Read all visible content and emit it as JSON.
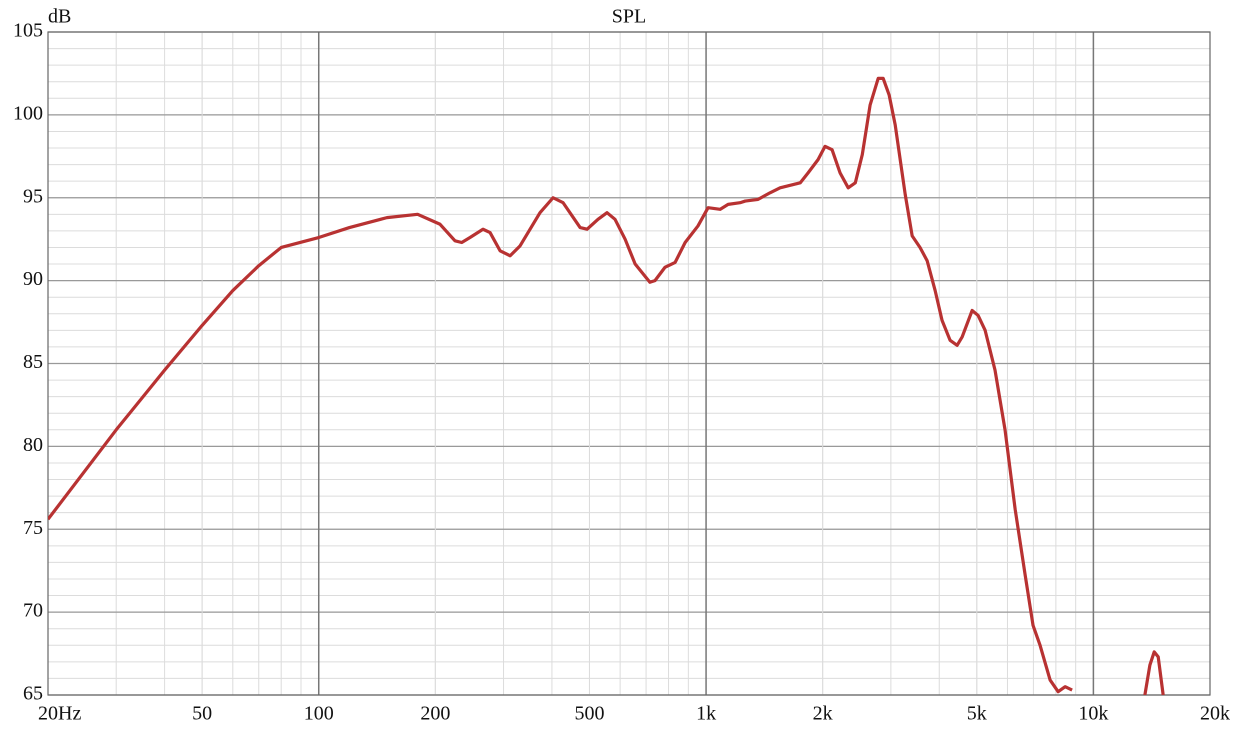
{
  "chart_data": {
    "type": "line",
    "title": "SPL",
    "y_label": "dB",
    "log_x": true,
    "grid": true,
    "minor_grid": true,
    "xlim": [
      20,
      20000
    ],
    "ylim": [
      65,
      105
    ],
    "xticks": [
      {
        "value": 20,
        "label": "20Hz"
      },
      50,
      100,
      200,
      500,
      {
        "value": 1000,
        "label": "1k"
      },
      {
        "value": 2000,
        "label": "2k"
      },
      {
        "value": 5000,
        "label": "5k"
      },
      {
        "value": 10000,
        "label": "10k"
      },
      {
        "value": 20000,
        "label": "20k"
      }
    ],
    "yticks": [
      65,
      70,
      75,
      80,
      85,
      90,
      95,
      100,
      105
    ],
    "series": [
      {
        "color": "#b83232",
        "x": [
          20,
          30,
          40,
          50,
          60,
          70,
          80,
          100,
          120,
          150,
          180,
          205.7,
          224.8,
          234,
          245.8,
          265.5,
          276.9,
          293.9,
          312,
          331,
          372.6,
          402.7,
          427.5,
          473,
          493,
          526,
          555,
          582,
          618,
          656,
          716,
          738,
          783,
          832,
          883,
          953,
          1012,
          1087,
          1140,
          1224,
          1262,
          1362,
          1463,
          1553,
          1750,
          1834,
          1946,
          2028,
          2115,
          2218,
          2328,
          2428,
          2531,
          2652,
          2782,
          2866,
          2969,
          3078,
          3267,
          3405,
          3568,
          3722,
          3903,
          4067,
          4266,
          4448,
          4583,
          4864,
          5039,
          5254,
          5572,
          5914,
          6281,
          6669,
          6985,
          7283,
          7732,
          8109,
          8454,
          8811,
          11000,
          13580,
          13990,
          14355,
          14700,
          15140
        ],
        "values": [
          75.6,
          81.0,
          84.6,
          87.3,
          89.4,
          90.9,
          92.0,
          92.6,
          93.2,
          93.8,
          94.0,
          93.4,
          92.4,
          92.3,
          92.6,
          93.1,
          92.9,
          91.8,
          91.5,
          92.1,
          94.1,
          95.0,
          94.7,
          93.2,
          93.1,
          93.7,
          94.1,
          93.7,
          92.5,
          91.0,
          89.9,
          90.0,
          90.8,
          91.1,
          92.3,
          93.3,
          94.4,
          94.3,
          94.6,
          94.7,
          94.8,
          94.9,
          95.3,
          95.6,
          95.9,
          96.5,
          97.3,
          98.1,
          97.9,
          96.5,
          95.6,
          95.9,
          97.6,
          100.6,
          102.2,
          102.2,
          101.2,
          99.4,
          95.2,
          92.7,
          92.0,
          91.2,
          89.4,
          87.6,
          86.4,
          86.1,
          86.6,
          88.2,
          87.9,
          87.0,
          84.6,
          81.0,
          76.2,
          72.2,
          69.2,
          68.0,
          65.9,
          65.2,
          65.5,
          65.3,
          null,
          65.0,
          66.8,
          67.6,
          67.3,
          65.0
        ]
      }
    ]
  }
}
